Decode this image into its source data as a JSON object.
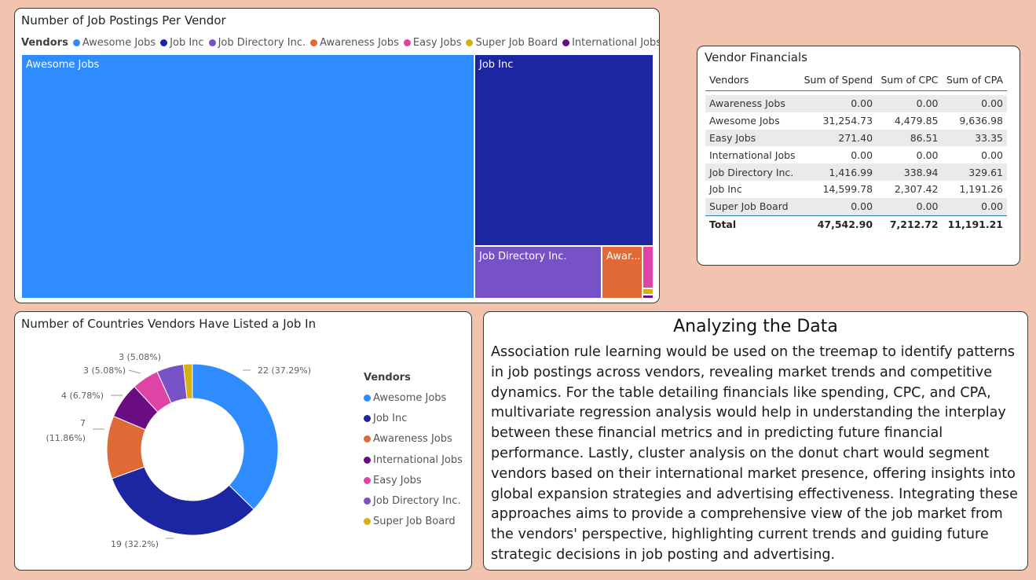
{
  "treemap": {
    "title": "Number of Job Postings Per Vendor",
    "legend_title": "Vendors",
    "legend": [
      {
        "name": "Awesome Jobs",
        "color": "#2f8cff"
      },
      {
        "name": "Job Inc",
        "color": "#1c26a0"
      },
      {
        "name": "Job Directory Inc.",
        "color": "#7752c6"
      },
      {
        "name": "Awareness Jobs",
        "color": "#e06a35"
      },
      {
        "name": "Easy Jobs",
        "color": "#de43a6"
      },
      {
        "name": "Super Job Board",
        "color": "#d7b013"
      },
      {
        "name": "International Jobs",
        "color": "#6a0d83"
      }
    ],
    "tiles": [
      {
        "label": "Awesome Jobs",
        "color": "#2f8cff"
      },
      {
        "label": "Job Inc",
        "color": "#1c26a0"
      },
      {
        "label": "Job Directory Inc.",
        "color": "#7752c6"
      },
      {
        "label": "Awar...",
        "color": "#e06a35"
      },
      {
        "label": "",
        "color": "#de43a6"
      },
      {
        "label": "",
        "color": "#d7b013"
      },
      {
        "label": "",
        "color": "#6a0d83"
      }
    ]
  },
  "financials": {
    "title": "Vendor Financials",
    "columns": [
      "Vendors",
      "Sum of Spend",
      "Sum of CPC",
      "Sum of CPA"
    ],
    "rows": [
      [
        "Awareness Jobs",
        "0.00",
        "0.00",
        "0.00"
      ],
      [
        "Awesome Jobs",
        "31,254.73",
        "4,479.85",
        "9,636.98"
      ],
      [
        "Easy Jobs",
        "271.40",
        "86.51",
        "33.35"
      ],
      [
        "International Jobs",
        "0.00",
        "0.00",
        "0.00"
      ],
      [
        "Job Directory Inc.",
        "1,416.99",
        "338.94",
        "329.61"
      ],
      [
        "Job Inc",
        "14,599.78",
        "2,307.42",
        "1,191.26"
      ],
      [
        "Super Job Board",
        "0.00",
        "0.00",
        "0.00"
      ]
    ],
    "total": [
      "Total",
      "47,542.90",
      "7,212.72",
      "11,191.21"
    ]
  },
  "donut": {
    "title": "Number of Countries Vendors Have Listed a Job In",
    "legend_title": "Vendors"
  },
  "analysis": {
    "title": "Analyzing the Data",
    "body": "Association rule learning would be used on the treemap to identify patterns in job postings across vendors, revealing market trends and competitive dynamics. For the table detailing financials like spending, CPC, and CPA, multivariate regression analysis would help in understanding the interplay between these financial metrics and in predicting future financial performance. Lastly, cluster analysis on the donut chart would segment vendors based on their international market presence, offering insights into global expansion strategies and advertising effectiveness. Integrating these approaches aims to provide a comprehensive view of the job market from the vendors' perspective, highlighting current trends and guiding future strategic decisions in job posting and advertising."
  },
  "chart_data": [
    {
      "type": "treemap",
      "title": "Number of Job Postings Per Vendor",
      "categories": [
        "Awesome Jobs",
        "Job Inc",
        "Job Directory Inc.",
        "Awareness Jobs",
        "Easy Jobs",
        "Super Job Board",
        "International Jobs"
      ],
      "values": [
        574,
        248,
        64,
        50,
        10,
        3,
        1.5
      ]
    },
    {
      "type": "pie",
      "title": "Number of Countries Vendors Have Listed a Job In",
      "categories": [
        "Awesome Jobs",
        "Job Inc",
        "Awareness Jobs",
        "International Jobs",
        "Easy Jobs",
        "Job Directory Inc.",
        "Super Job Board"
      ],
      "values": [
        22,
        19,
        7,
        4,
        3,
        3,
        1
      ],
      "colors": [
        "#2f8cff",
        "#1c26a0",
        "#e06a35",
        "#6a0d83",
        "#de43a6",
        "#7752c6",
        "#d7b013"
      ],
      "labels": [
        "22 (37.29%)",
        "19 (32.2%)",
        "7 (11.86%)",
        "4 (6.78%)",
        "3 (5.08%)",
        "3 (5.08%)",
        ""
      ]
    }
  ]
}
